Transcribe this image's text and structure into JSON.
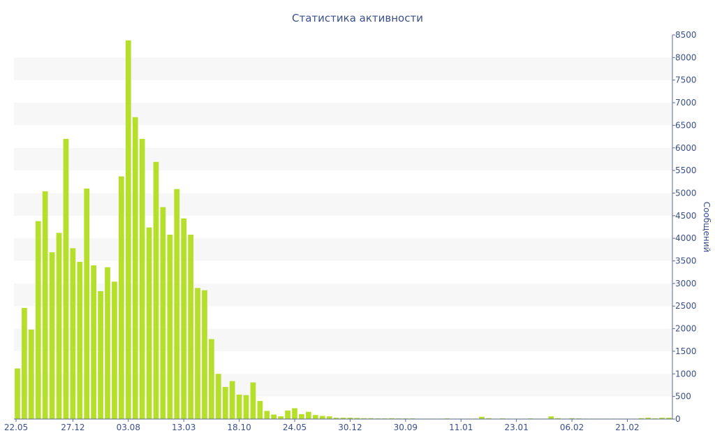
{
  "chart_data": {
    "type": "bar",
    "title": "Статистика активности",
    "ylabel": "Сообщений",
    "ylim": [
      0,
      8500
    ],
    "y_ticks": [
      0,
      500,
      1000,
      1500,
      2000,
      2500,
      3000,
      3500,
      4000,
      4500,
      5000,
      5500,
      6000,
      6500,
      7000,
      7500,
      8000,
      8500
    ],
    "y_axis_side": "right",
    "banded_background": true,
    "x_tick_labels": [
      {
        "label": "22.05",
        "index": 0
      },
      {
        "label": "27.12",
        "index": 8
      },
      {
        "label": "03.08",
        "index": 16
      },
      {
        "label": "13.03",
        "index": 24
      },
      {
        "label": "18.10",
        "index": 32
      },
      {
        "label": "24.05",
        "index": 40
      },
      {
        "label": "30.12",
        "index": 48
      },
      {
        "label": "30.09",
        "index": 56
      },
      {
        "label": "11.01",
        "index": 64
      },
      {
        "label": "23.01",
        "index": 72
      },
      {
        "label": "06.02",
        "index": 80
      },
      {
        "label": "21.02",
        "index": 88
      }
    ],
    "values": [
      1120,
      2460,
      1980,
      4380,
      5040,
      3690,
      4120,
      6200,
      3780,
      3480,
      5100,
      3400,
      2830,
      3360,
      3040,
      5370,
      8380,
      6680,
      6200,
      4240,
      5690,
      4690,
      4080,
      5090,
      4440,
      4080,
      2900,
      2850,
      1770,
      1000,
      710,
      840,
      540,
      530,
      810,
      400,
      180,
      100,
      60,
      190,
      240,
      110,
      160,
      90,
      70,
      60,
      30,
      30,
      30,
      25,
      20,
      20,
      15,
      15,
      20,
      15,
      15,
      15,
      10,
      10,
      10,
      10,
      15,
      10,
      10,
      10,
      10,
      50,
      20,
      10,
      15,
      10,
      10,
      10,
      15,
      10,
      10,
      60,
      20,
      10,
      20,
      15,
      10,
      10,
      10,
      10,
      10,
      10,
      10,
      10,
      20,
      30,
      15,
      30,
      30
    ],
    "colors": {
      "bar": "#b5df2b",
      "band": "#f7f7f7",
      "text": "#3a4f8c",
      "axis": "#5a6a95"
    }
  }
}
